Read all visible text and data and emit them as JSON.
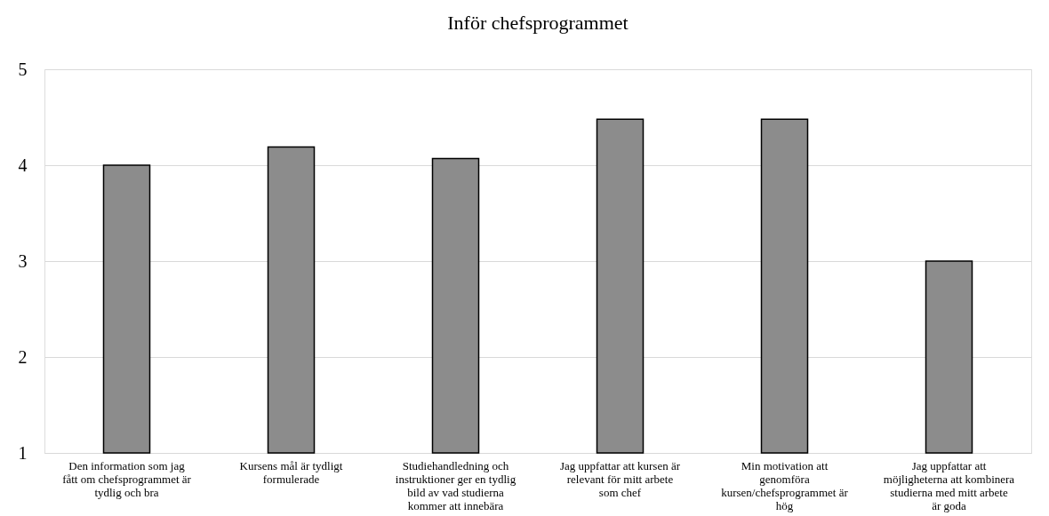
{
  "chart_data": {
    "type": "bar",
    "title": "Inför chefsprogrammet",
    "categories": [
      "Den information som jag fått om chefsprogrammet är tydlig och bra",
      "Kursens mål är tydligt formulerade",
      "Studiehandledning och instruktioner ger en tydlig bild av vad studierna kommer att innebära",
      "Jag uppfattar att kursen är relevant för mitt arbete som chef",
      "Min motivation att genomföra kursen/chefsprogrammet är hög",
      "Jag uppfattar att möjligheterna att kombinera studierna med mitt arbete är goda"
    ],
    "values": [
      4.0,
      4.19,
      4.07,
      4.48,
      4.48,
      3.0
    ],
    "color": "#8c8c8c",
    "ylim": [
      1,
      5
    ],
    "yticks": [
      1,
      2,
      3,
      4,
      5
    ],
    "grid": "y"
  }
}
